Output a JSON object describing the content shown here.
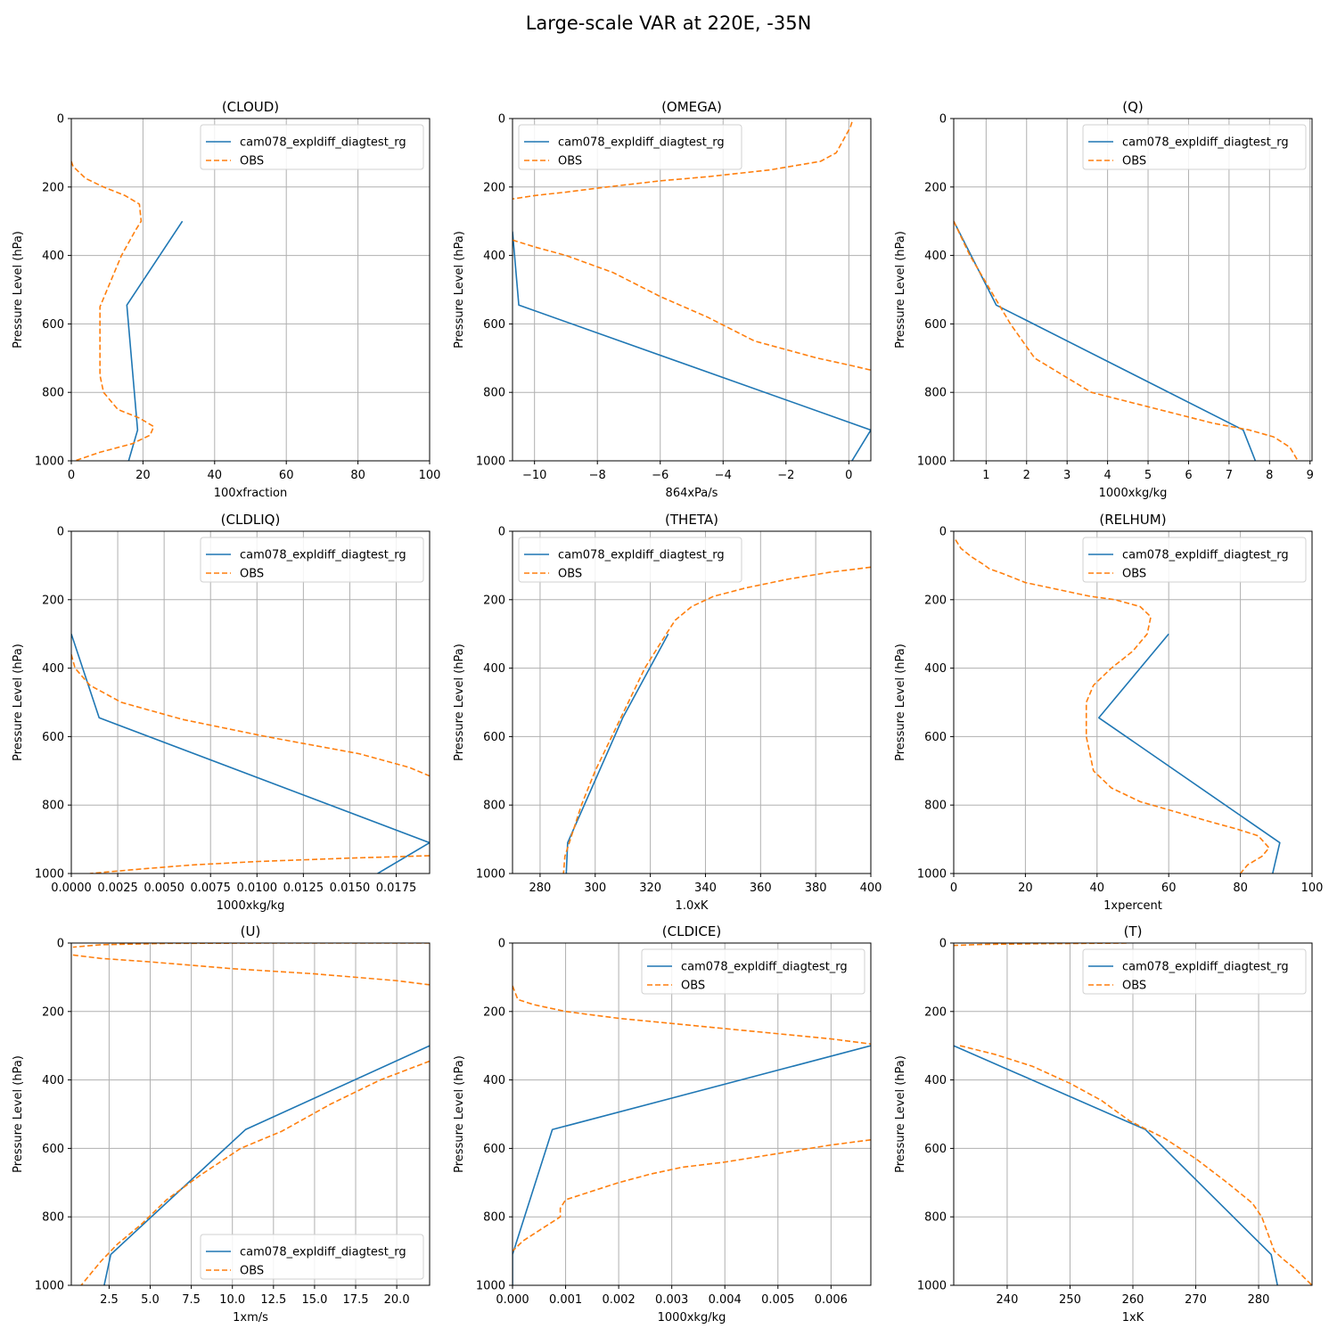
{
  "figure": {
    "title": "Large-scale VAR at 220E, -35N"
  },
  "colors": {
    "model": "#1f77b4",
    "obs": "#ff7f0e",
    "grid": "#b0b0b0",
    "axis": "#000000"
  },
  "chart_data": [
    {
      "type": "line",
      "title": "(CLOUD)",
      "xlabel": "100xfraction",
      "ylabel": "Pressure Level (hPa)",
      "xlim": [
        0,
        100
      ],
      "ylim": [
        1000,
        0
      ],
      "grid": true,
      "xticks": [
        0,
        20,
        40,
        60,
        80,
        100
      ],
      "xtick_labels": [
        "0",
        "20",
        "40",
        "60",
        "80",
        "100"
      ],
      "yticks": [
        0,
        200,
        400,
        600,
        800,
        1000
      ],
      "ytick_labels": [
        "0",
        "200",
        "400",
        "600",
        "800",
        "1000"
      ],
      "legend": {
        "loc": "upper-right",
        "entries": [
          "cam078_expldiff_diagtest_rg",
          "OBS"
        ]
      },
      "series": [
        {
          "name": "cam078_expldiff_diagtest_rg",
          "style": "solid",
          "x": [
            31,
            15.5,
            18.5,
            16
          ],
          "y": [
            300,
            545,
            910,
            1000
          ]
        },
        {
          "name": "OBS",
          "style": "dashed",
          "x": [
            0,
            0.5,
            4,
            9,
            15,
            19,
            19.5,
            18,
            14,
            10,
            8,
            8,
            8,
            9,
            13,
            19,
            23,
            22,
            17,
            8,
            1
          ],
          "y": [
            125,
            140,
            175,
            200,
            225,
            250,
            300,
            325,
            400,
            500,
            550,
            650,
            750,
            800,
            850,
            875,
            900,
            925,
            950,
            975,
            1000
          ]
        }
      ]
    },
    {
      "type": "line",
      "title": "(OMEGA)",
      "xlabel": "864xPa/s",
      "ylabel": "Pressure Level (hPa)",
      "xlim": [
        -10.7,
        0.7
      ],
      "ylim": [
        1000,
        0
      ],
      "grid": true,
      "xticks": [
        -10,
        -8,
        -6,
        -4,
        -2,
        0
      ],
      "xtick_labels": [
        "−10",
        "−8",
        "−6",
        "−4",
        "−2",
        "0"
      ],
      "yticks": [
        0,
        200,
        400,
        600,
        800,
        1000
      ],
      "ytick_labels": [
        "0",
        "200",
        "400",
        "600",
        "800",
        "1000"
      ],
      "legend": {
        "loc": "upper-left",
        "entries": [
          "cam078_expldiff_diagtest_rg",
          "OBS"
        ]
      },
      "series": [
        {
          "name": "cam078_expldiff_diagtest_rg",
          "style": "solid",
          "x": [
            -10.7,
            -10.5,
            0.7,
            0.1
          ],
          "y": [
            330,
            545,
            910,
            1000
          ]
        },
        {
          "name": "OBS",
          "style": "dashed",
          "x": [
            0.1,
            0.05,
            -0.4,
            -0.9,
            -2.5,
            -4.5,
            -6,
            -7.7,
            -9,
            -10,
            -10.7
          ],
          "y": [
            10,
            25,
            100,
            125,
            150,
            170,
            182,
            200,
            215,
            225,
            235
          ]
        },
        {
          "name": "OBS",
          "style": "dashed",
          "x": [
            -10.7,
            -10,
            -9,
            -7.5,
            -6,
            -4.5,
            -3,
            -2,
            -1,
            0,
            0.7
          ],
          "y": [
            355,
            375,
            400,
            450,
            520,
            580,
            650,
            675,
            700,
            720,
            735
          ]
        }
      ]
    },
    {
      "type": "line",
      "title": "(Q)",
      "xlabel": "1000xkg/kg",
      "ylabel": "Pressure Level (hPa)",
      "xlim": [
        0.2,
        9.05
      ],
      "ylim": [
        1000,
        0
      ],
      "grid": true,
      "xticks": [
        1,
        2,
        3,
        4,
        5,
        6,
        7,
        8,
        9
      ],
      "xtick_labels": [
        "1",
        "2",
        "3",
        "4",
        "5",
        "6",
        "7",
        "8",
        "9"
      ],
      "yticks": [
        0,
        200,
        400,
        600,
        800,
        1000
      ],
      "ytick_labels": [
        "0",
        "200",
        "400",
        "600",
        "800",
        "1000"
      ],
      "legend": {
        "loc": "upper-right",
        "entries": [
          "cam078_expldiff_diagtest_rg",
          "OBS"
        ]
      },
      "series": [
        {
          "name": "cam078_expldiff_diagtest_rg",
          "style": "solid",
          "x": [
            0.2,
            1.25,
            7.35,
            7.65
          ],
          "y": [
            300,
            545,
            910,
            1000
          ]
        },
        {
          "name": "OBS",
          "style": "dashed",
          "x": [
            0.2,
            0.6,
            1.1,
            1.6,
            2.2,
            2.9,
            3.6,
            4.6,
            5.6,
            6.6,
            7.5,
            8.1,
            8.5,
            8.7
          ],
          "y": [
            300,
            400,
            500,
            600,
            700,
            750,
            800,
            830,
            860,
            890,
            910,
            930,
            960,
            1000
          ]
        }
      ]
    },
    {
      "type": "line",
      "title": "(CLDLIQ)",
      "xlabel": "1000xkg/kg",
      "ylabel": "Pressure Level (hPa)",
      "xlim": [
        0,
        0.0193
      ],
      "ylim": [
        1000,
        0
      ],
      "grid": true,
      "xticks": [
        0,
        0.0025,
        0.005,
        0.0075,
        0.01,
        0.0125,
        0.015,
        0.0175
      ],
      "xtick_labels": [
        "0.0000",
        "0.0025",
        "0.0050",
        "0.0075",
        "0.0100",
        "0.0125",
        "0.0150",
        "0.0175"
      ],
      "yticks": [
        0,
        200,
        400,
        600,
        800,
        1000
      ],
      "ytick_labels": [
        "0",
        "200",
        "400",
        "600",
        "800",
        "1000"
      ],
      "legend": {
        "loc": "upper-right",
        "entries": [
          "cam078_expldiff_diagtest_rg",
          "OBS"
        ]
      },
      "series": [
        {
          "name": "cam078_expldiff_diagtest_rg",
          "style": "solid",
          "x": [
            0,
            0.0015,
            0.0193,
            0.0165
          ],
          "y": [
            300,
            545,
            910,
            1000
          ]
        },
        {
          "name": "OBS",
          "style": "dashed",
          "x": [
            0,
            0.0002,
            0.001,
            0.0027,
            0.006,
            0.0105,
            0.0155,
            0.0182,
            0.0193
          ],
          "y": [
            360,
            400,
            450,
            500,
            550,
            600,
            650,
            690,
            715
          ]
        },
        {
          "name": "OBS",
          "style": "dashed",
          "x": [
            0.0193,
            0.015,
            0.01,
            0.0065,
            0.0035,
            0.001
          ],
          "y": [
            948,
            955,
            965,
            975,
            988,
            1000
          ]
        }
      ]
    },
    {
      "type": "line",
      "title": "(THETA)",
      "xlabel": "1.0xK",
      "ylabel": "Pressure Level (hPa)",
      "xlim": [
        270,
        400
      ],
      "ylim": [
        1000,
        0
      ],
      "grid": true,
      "xticks": [
        280,
        300,
        320,
        340,
        360,
        380,
        400
      ],
      "xtick_labels": [
        "280",
        "300",
        "320",
        "340",
        "360",
        "380",
        "400"
      ],
      "yticks": [
        0,
        200,
        400,
        600,
        800,
        1000
      ],
      "ytick_labels": [
        "0",
        "200",
        "400",
        "600",
        "800",
        "1000"
      ],
      "legend": {
        "loc": "upper-left",
        "entries": [
          "cam078_expldiff_diagtest_rg",
          "OBS"
        ]
      },
      "series": [
        {
          "name": "cam078_expldiff_diagtest_rg",
          "style": "solid",
          "x": [
            326.5,
            310,
            290,
            289.5
          ],
          "y": [
            300,
            545,
            910,
            1000
          ]
        },
        {
          "name": "OBS",
          "style": "dashed",
          "x": [
            400,
            385,
            370,
            355,
            343,
            335,
            329,
            325,
            318,
            312,
            306,
            300,
            295,
            291,
            289,
            288.5
          ],
          "y": [
            105,
            120,
            140,
            165,
            190,
            220,
            260,
            310,
            400,
            500,
            600,
            700,
            800,
            900,
            950,
            1000
          ]
        }
      ]
    },
    {
      "type": "line",
      "title": "(RELHUM)",
      "xlabel": "1xpercent",
      "ylabel": "Pressure Level (hPa)",
      "xlim": [
        0,
        100
      ],
      "ylim": [
        1000,
        0
      ],
      "grid": true,
      "xticks": [
        0,
        20,
        40,
        60,
        80,
        100
      ],
      "xtick_labels": [
        "0",
        "20",
        "40",
        "60",
        "80",
        "100"
      ],
      "yticks": [
        0,
        200,
        400,
        600,
        800,
        1000
      ],
      "ytick_labels": [
        "0",
        "200",
        "400",
        "600",
        "800",
        "1000"
      ],
      "legend": {
        "loc": "upper-right",
        "entries": [
          "cam078_expldiff_diagtest_rg",
          "OBS"
        ]
      },
      "series": [
        {
          "name": "cam078_expldiff_diagtest_rg",
          "style": "solid",
          "x": [
            60,
            40.5,
            91,
            89
          ],
          "y": [
            300,
            545,
            910,
            1000
          ]
        },
        {
          "name": "OBS",
          "style": "dashed",
          "x": [
            0.5,
            2,
            5,
            8,
            10,
            14,
            20,
            29,
            38,
            45,
            52,
            55,
            54,
            50,
            44,
            39,
            37,
            37,
            39,
            44,
            52,
            62,
            72,
            79,
            85,
            88,
            86,
            82,
            80
          ],
          "y": [
            25,
            50,
            75,
            95,
            110,
            125,
            150,
            170,
            190,
            200,
            220,
            250,
            300,
            350,
            400,
            450,
            500,
            600,
            700,
            750,
            790,
            820,
            850,
            870,
            890,
            925,
            950,
            975,
            1000
          ]
        }
      ]
    },
    {
      "type": "line",
      "title": "(U)",
      "xlabel": "1xm/s",
      "ylabel": "Pressure Level (hPa)",
      "xlim": [
        0.2,
        22
      ],
      "ylim": [
        1000,
        0
      ],
      "grid": true,
      "xticks": [
        2.5,
        5,
        7.5,
        10,
        12.5,
        15,
        17.5,
        20
      ],
      "xtick_labels": [
        "2.5",
        "5.0",
        "7.5",
        "10.0",
        "12.5",
        "15.0",
        "17.5",
        "20.0"
      ],
      "yticks": [
        0,
        200,
        400,
        600,
        800,
        1000
      ],
      "ytick_labels": [
        "0",
        "200",
        "400",
        "600",
        "800",
        "1000"
      ],
      "legend": {
        "loc": "lower-right",
        "entries": [
          "cam078_expldiff_diagtest_rg",
          "OBS"
        ]
      },
      "series": [
        {
          "name": "cam078_expldiff_diagtest_rg",
          "style": "solid",
          "x": [
            22,
            10.8,
            2.6,
            2.2
          ],
          "y": [
            300,
            545,
            910,
            1000
          ]
        },
        {
          "name": "OBS",
          "style": "dashed",
          "x": [
            22,
            12,
            6,
            2,
            0.3
          ],
          "y": [
            0,
            0,
            1,
            5,
            12
          ]
        },
        {
          "name": "OBS",
          "style": "dashed",
          "x": [
            0.3,
            2,
            5,
            10,
            15,
            20,
            22
          ],
          "y": [
            35,
            45,
            55,
            75,
            90,
            110,
            122
          ]
        },
        {
          "name": "OBS",
          "style": "dashed",
          "x": [
            22,
            19,
            16,
            13,
            10.5,
            8,
            6,
            4.5,
            3,
            2,
            0.8
          ],
          "y": [
            345,
            400,
            470,
            550,
            600,
            680,
            750,
            820,
            880,
            930,
            1000
          ]
        }
      ]
    },
    {
      "type": "line",
      "title": "(CLDICE)",
      "xlabel": "1000xkg/kg",
      "ylabel": "Pressure Level (hPa)",
      "xlim": [
        0,
        0.00675
      ],
      "ylim": [
        1000,
        0
      ],
      "grid": true,
      "xticks": [
        0,
        0.001,
        0.002,
        0.003,
        0.004,
        0.005,
        0.006
      ],
      "xtick_labels": [
        "0.000",
        "0.001",
        "0.002",
        "0.003",
        "0.004",
        "0.005",
        "0.006"
      ],
      "yticks": [
        0,
        200,
        400,
        600,
        800,
        1000
      ],
      "ytick_labels": [
        "0",
        "200",
        "400",
        "600",
        "800",
        "1000"
      ],
      "legend": {
        "loc": "upper-right",
        "entries": [
          "cam078_expldiff_diagtest_rg",
          "OBS"
        ]
      },
      "series": [
        {
          "name": "cam078_expldiff_diagtest_rg",
          "style": "solid",
          "x": [
            0.00675,
            0.00075,
            0,
            0
          ],
          "y": [
            300,
            545,
            910,
            1000
          ]
        },
        {
          "name": "OBS",
          "style": "dashed",
          "x": [
            0,
            0.0001,
            0.0004,
            0.001,
            0.002,
            0.003,
            0.004,
            0.005,
            0.006,
            0.00675
          ],
          "y": [
            125,
            165,
            180,
            200,
            220,
            235,
            250,
            265,
            280,
            295
          ]
        },
        {
          "name": "OBS",
          "style": "dashed",
          "x": [
            0.00675,
            0.006,
            0.005,
            0.004,
            0.0032,
            0.0026,
            0.002,
            0.0015,
            0.001,
            0.0009,
            0.0009,
            0.0006,
            0.0002,
            0
          ],
          "y": [
            575,
            590,
            615,
            640,
            655,
            675,
            700,
            725,
            750,
            775,
            800,
            830,
            870,
            900
          ]
        }
      ]
    },
    {
      "type": "line",
      "title": "(T)",
      "xlabel": "1xK",
      "ylabel": "Pressure Level (hPa)",
      "xlim": [
        231.5,
        288.5
      ],
      "ylim": [
        1000,
        0
      ],
      "grid": true,
      "xticks": [
        240,
        250,
        260,
        270,
        280
      ],
      "xtick_labels": [
        "240",
        "250",
        "260",
        "270",
        "280"
      ],
      "yticks": [
        0,
        200,
        400,
        600,
        800,
        1000
      ],
      "ytick_labels": [
        "0",
        "200",
        "400",
        "600",
        "800",
        "1000"
      ],
      "legend": {
        "loc": "upper-right",
        "entries": [
          "cam078_expldiff_diagtest_rg",
          "OBS"
        ]
      },
      "series": [
        {
          "name": "cam078_expldiff_diagtest_rg",
          "style": "solid",
          "x": [
            231.5,
            262,
            282,
            283
          ],
          "y": [
            300,
            545,
            910,
            1000
          ]
        },
        {
          "name": "OBS",
          "style": "dashed",
          "x": [
            259,
            245,
            236,
            231.5
          ],
          "y": [
            0,
            2,
            4,
            7
          ]
        },
        {
          "name": "OBS",
          "style": "dashed",
          "x": [
            232.5,
            238,
            244,
            250,
            255,
            259.5,
            265,
            270,
            275,
            279,
            280.5,
            281.5,
            282.5,
            284,
            286,
            288.5
          ],
          "y": [
            300,
            325,
            360,
            410,
            460,
            520,
            570,
            630,
            700,
            760,
            800,
            850,
            900,
            925,
            955,
            1000
          ]
        }
      ]
    }
  ]
}
